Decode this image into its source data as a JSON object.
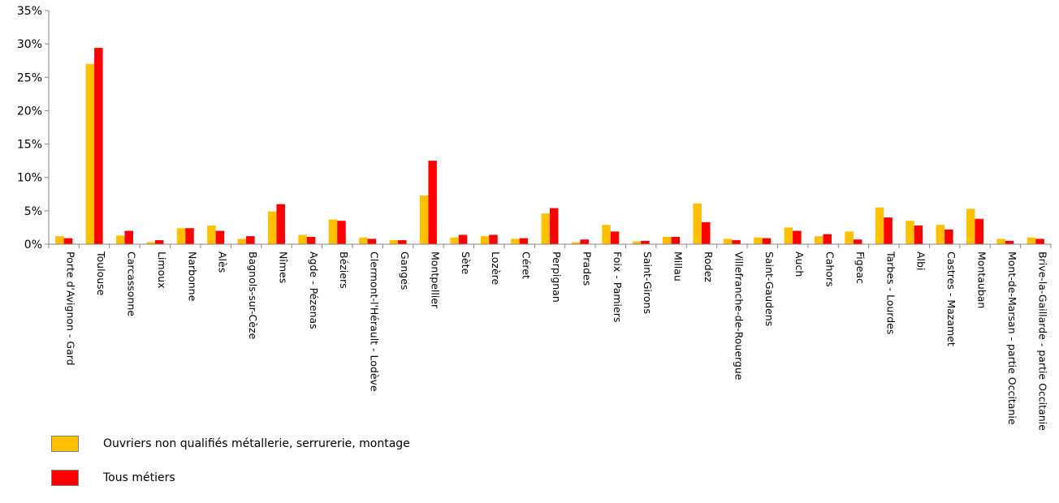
{
  "chart_data": {
    "type": "bar",
    "title": "",
    "xlabel": "",
    "ylabel": "",
    "ylim": [
      0,
      35
    ],
    "yticks": [
      "0%",
      "5%",
      "10%",
      "15%",
      "20%",
      "25%",
      "30%",
      "35%"
    ],
    "ytick_values": [
      0,
      5,
      10,
      15,
      20,
      25,
      30,
      35
    ],
    "grid": false,
    "legend_position": "bottom-left",
    "categories": [
      "Porte d'Avignon - Gard",
      "Toulouse",
      "Carcassonne",
      "Limoux",
      "Narbonne",
      "Alès",
      "Bagnols-sur-Cèze",
      "Nîmes",
      "Agde - Pézenas",
      "Béziers",
      "Clermont-l'Hérault - Lodève",
      "Ganges",
      "Montpellier",
      "Sète",
      "Lozère",
      "Céret",
      "Perpignan",
      "Prades",
      "Foix - Pamiers",
      "Saint-Girons",
      "Millau",
      "Rodez",
      "Villefranche-de-Rouergue",
      "Saint-Gaudens",
      "Auch",
      "Cahors",
      "Figeac",
      "Tarbes - Lourdes",
      "Albi",
      "Castres - Mazamet",
      "Montauban",
      "Mont-de-Marsan - partie Occitanie",
      "Brive-la-Gaillarde - partie Occitanie"
    ],
    "series": [
      {
        "name": "Ouvriers non qualifiés métallerie, serrurerie, montage",
        "color": "#FFC000",
        "values": [
          1.2,
          27.0,
          1.3,
          0.3,
          2.4,
          2.8,
          0.8,
          4.9,
          1.4,
          3.7,
          1.0,
          0.6,
          7.3,
          1.0,
          1.2,
          0.8,
          4.6,
          0.3,
          2.9,
          0.4,
          1.1,
          6.1,
          0.8,
          1.0,
          2.5,
          1.2,
          1.9,
          5.5,
          3.5,
          2.9,
          5.3,
          0.8,
          1.0
        ]
      },
      {
        "name": "Tous métiers",
        "color": "#FF0000",
        "values": [
          0.9,
          29.4,
          2.0,
          0.6,
          2.4,
          2.0,
          1.2,
          6.0,
          1.1,
          3.5,
          0.8,
          0.6,
          12.5,
          1.4,
          1.4,
          0.9,
          5.4,
          0.7,
          1.9,
          0.5,
          1.1,
          3.3,
          0.6,
          0.9,
          2.0,
          1.5,
          0.7,
          4.0,
          2.8,
          2.2,
          3.8,
          0.5,
          0.8
        ]
      }
    ]
  }
}
